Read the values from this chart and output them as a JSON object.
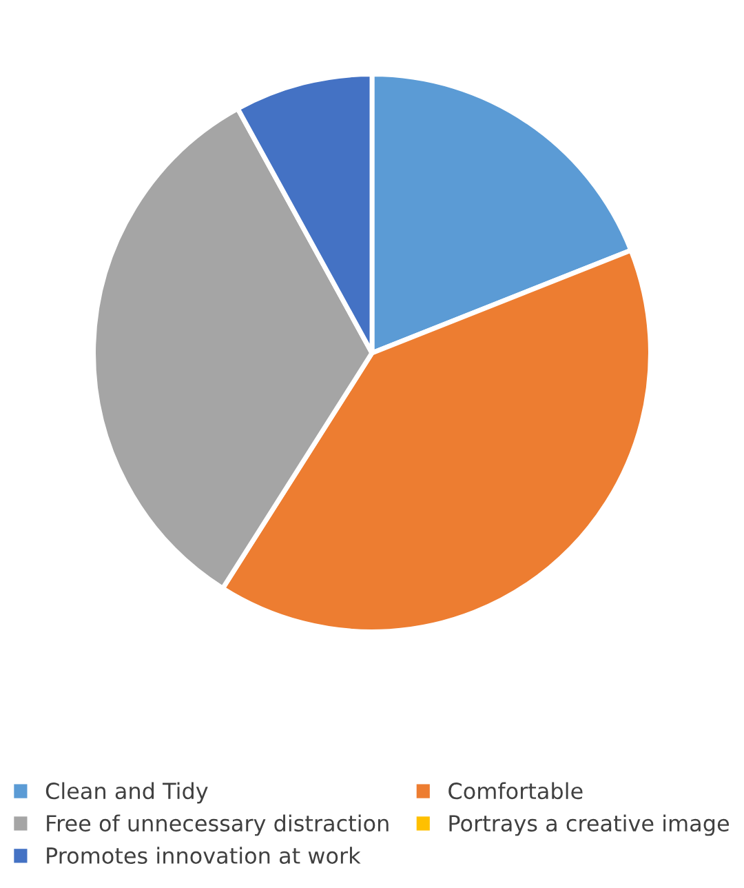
{
  "chart_data": {
    "type": "pie",
    "categories": [
      "Clean and Tidy",
      "Comfortable",
      "Free of unnecessary distraction",
      "Portrays a creative image",
      "Promotes innovation at work"
    ],
    "values": [
      19,
      40,
      33,
      0,
      8
    ],
    "colors": [
      "#5b9bd5",
      "#ed7d31",
      "#a5a5a5",
      "#ffc000",
      "#4472c4"
    ],
    "legend": "bottom"
  }
}
